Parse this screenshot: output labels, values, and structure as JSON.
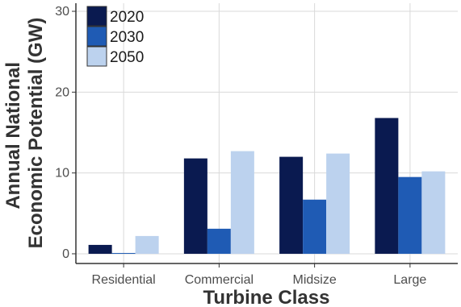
{
  "chart_data": {
    "type": "bar",
    "title": "",
    "xlabel": "Turbine Class",
    "ylabel_lines": [
      "Annual National",
      "Economic Potential (GW)"
    ],
    "categories": [
      "Residential",
      "Commercial",
      "Midsize",
      "Large"
    ],
    "series": [
      {
        "name": "2020",
        "color": "#0a1a50",
        "values": [
          1.1,
          11.8,
          12.0,
          16.8
        ]
      },
      {
        "name": "2030",
        "color": "#1f5bb4",
        "values": [
          0.1,
          3.1,
          6.7,
          9.5
        ]
      },
      {
        "name": "2050",
        "color": "#bcd2ee",
        "values": [
          2.2,
          12.7,
          12.4,
          10.2
        ]
      }
    ],
    "ylim": [
      -1.2,
      31
    ],
    "yticks": [
      0,
      10,
      20,
      30
    ],
    "grid": true,
    "legend_position": "top-left"
  }
}
